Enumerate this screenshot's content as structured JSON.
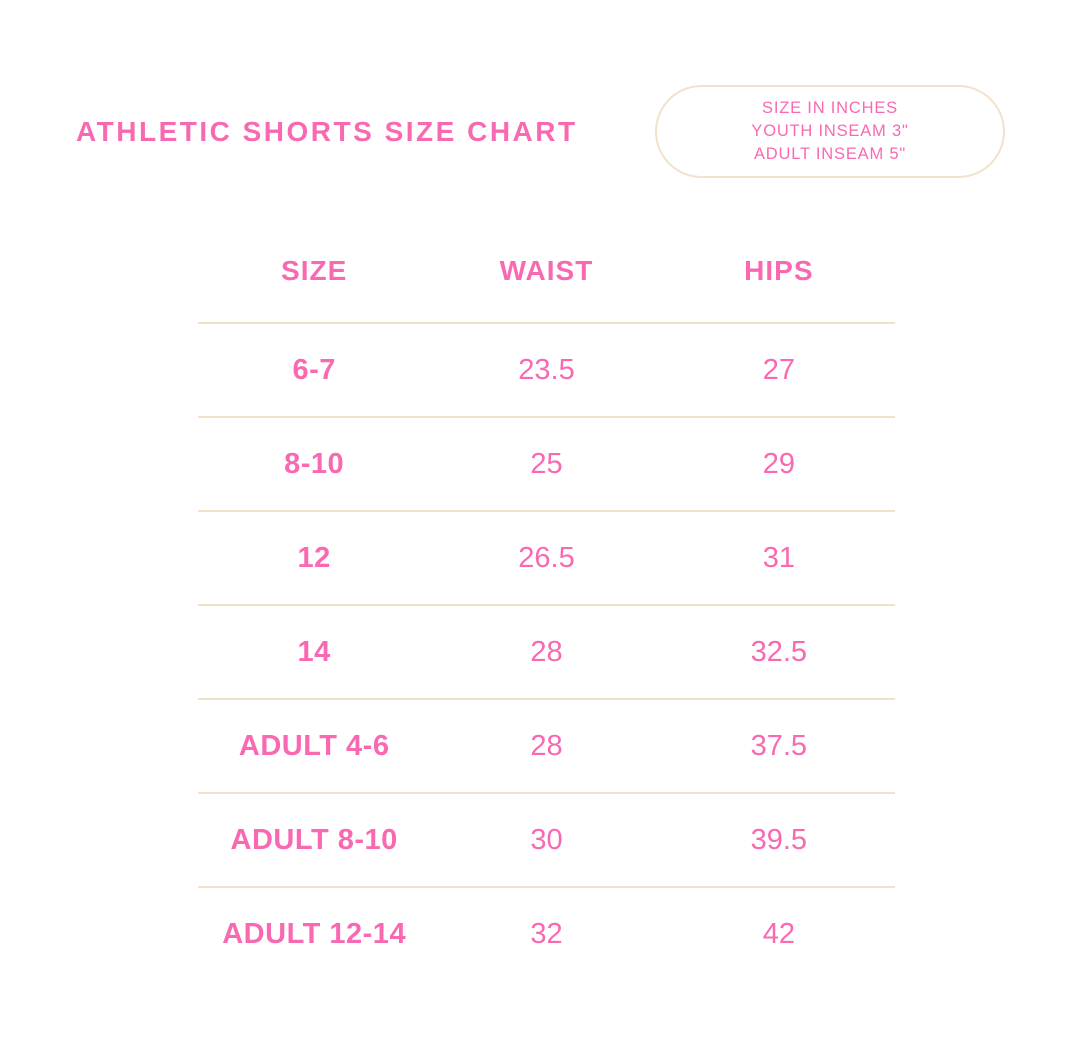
{
  "header": {
    "title": "ATHLETIC SHORTS SIZE CHART",
    "badge_lines": [
      "SIZE IN INCHES",
      "YOUTH INSEAM 3\"",
      "ADULT INSEAM 5\""
    ]
  },
  "chart_data": {
    "type": "table",
    "title": "ATHLETIC SHORTS SIZE CHART",
    "units": "inches",
    "notes": [
      "SIZE IN INCHES",
      "YOUTH INSEAM 3\"",
      "ADULT INSEAM 5\""
    ],
    "columns": [
      "SIZE",
      "WAIST",
      "HIPS"
    ],
    "rows": [
      {
        "size": "6-7",
        "waist": 23.5,
        "hips": 27
      },
      {
        "size": "8-10",
        "waist": 25,
        "hips": 29
      },
      {
        "size": "12",
        "waist": 26.5,
        "hips": 31
      },
      {
        "size": "14",
        "waist": 28,
        "hips": 32.5
      },
      {
        "size": "ADULT 4-6",
        "waist": 28,
        "hips": 37.5
      },
      {
        "size": "ADULT 8-10",
        "waist": 30,
        "hips": 39.5
      },
      {
        "size": "ADULT 12-14",
        "waist": 32,
        "hips": 42
      }
    ]
  },
  "colors": {
    "pink": "#F969B2",
    "divider": "#F2E1CB",
    "background": "#FFFFFF"
  }
}
